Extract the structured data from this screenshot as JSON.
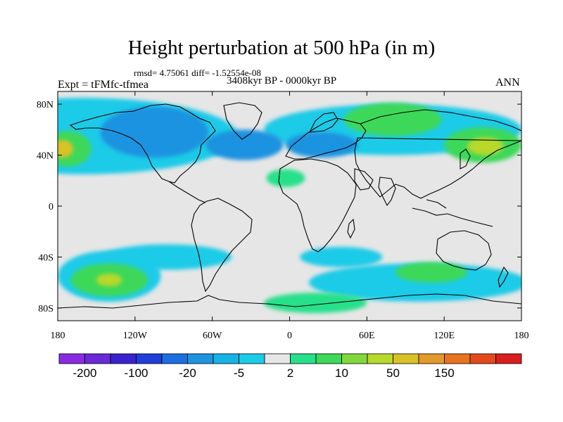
{
  "header": {
    "title": "Height perturbation at 500 hPa (in m)",
    "stats": "rmsd= 4.75061 diff= -1.52554e-08",
    "period": "3408kyr BP - 0000kyr BP",
    "experiment": "Expt = tFMfc-tfmea",
    "season": "ANN"
  },
  "axes": {
    "y_ticks": [
      {
        "label": "80N",
        "lat": 80
      },
      {
        "label": "40N",
        "lat": 40
      },
      {
        "label": "0",
        "lat": 0
      },
      {
        "label": "40S",
        "lat": -40
      },
      {
        "label": "80S",
        "lat": -80
      }
    ],
    "x_ticks": [
      {
        "label": "180",
        "lon": -180
      },
      {
        "label": "120W",
        "lon": -120
      },
      {
        "label": "60W",
        "lon": -60
      },
      {
        "label": "0",
        "lon": 0
      },
      {
        "label": "60E",
        "lon": 60
      },
      {
        "label": "120E",
        "lon": 120
      },
      {
        "label": "180",
        "lon": 180
      }
    ]
  },
  "colorbar": {
    "colors": [
      "#8a2be2",
      "#6a2ad6",
      "#3a22cc",
      "#1f3fd8",
      "#1c6fe0",
      "#1f93e0",
      "#16b3e6",
      "#1ccbe8",
      "#e6e6e6",
      "#27e08a",
      "#3ed85a",
      "#82d83a",
      "#b8d82c",
      "#d8c228",
      "#e49a28",
      "#e6741e",
      "#e24a1c",
      "#d81e1e"
    ],
    "labels": [
      {
        "text": "-200",
        "index": 1
      },
      {
        "text": "-100",
        "index": 3
      },
      {
        "text": "-20",
        "index": 5
      },
      {
        "text": "-5",
        "index": 7
      },
      {
        "text": "2",
        "index": 9
      },
      {
        "text": "10",
        "index": 11
      },
      {
        "text": "50",
        "index": 13
      },
      {
        "text": "150",
        "index": 15
      }
    ]
  },
  "map_fields": {
    "neutral_color": "#e6e6e6",
    "regions": [
      {
        "name": "cyan-northern-band",
        "color": "#1ccbe8",
        "lon": -160,
        "lat": 55,
        "rlon": 120,
        "rlat": 30
      },
      {
        "name": "cyan-asia-band",
        "color": "#1ccbe8",
        "lon": 80,
        "lat": 60,
        "rlon": 100,
        "rlat": 20
      },
      {
        "name": "blue-north-america",
        "color": "#1f93e0",
        "lon": -105,
        "lat": 58,
        "rlon": 42,
        "rlat": 20
      },
      {
        "name": "blue-atlantic",
        "color": "#1f93e0",
        "lon": -35,
        "lat": 48,
        "rlon": 30,
        "rlat": 12
      },
      {
        "name": "blue-europe",
        "color": "#1f93e0",
        "lon": 25,
        "lat": 48,
        "rlon": 28,
        "rlat": 10
      },
      {
        "name": "green-north-pacific",
        "color": "#3ed85a",
        "lon": -172,
        "lat": 45,
        "rlon": 18,
        "rlat": 14
      },
      {
        "name": "orange-north-pacific",
        "color": "#d8c228",
        "lon": -176,
        "lat": 45,
        "rlon": 8,
        "rlat": 7
      },
      {
        "name": "green-siberia",
        "color": "#3ed85a",
        "lon": 80,
        "lat": 68,
        "rlon": 38,
        "rlat": 13
      },
      {
        "name": "green-east-asia",
        "color": "#3ed85a",
        "lon": 150,
        "lat": 48,
        "rlon": 30,
        "rlat": 14
      },
      {
        "name": "yellow-east-asia",
        "color": "#b8d82c",
        "lon": 152,
        "lat": 47,
        "rlon": 14,
        "rlat": 7
      },
      {
        "name": "green-sahara",
        "color": "#27e08a",
        "lon": -3,
        "lat": 22,
        "rlon": 15,
        "rlat": 7
      },
      {
        "name": "cyan-south-america",
        "color": "#1ccbe8",
        "lon": -95,
        "lat": -40,
        "rlon": 50,
        "rlat": 10
      },
      {
        "name": "cyan-south-indian",
        "color": "#1ccbe8",
        "lon": 40,
        "lat": -40,
        "rlon": 32,
        "rlat": 8
      },
      {
        "name": "cyan-south-pacific-w",
        "color": "#1ccbe8",
        "lon": -140,
        "lat": -55,
        "rlon": 40,
        "rlat": 20
      },
      {
        "name": "green-south-pacific",
        "color": "#3ed85a",
        "lon": -140,
        "lat": -58,
        "rlon": 30,
        "rlat": 13
      },
      {
        "name": "yellow-south-pacific",
        "color": "#b8d82c",
        "lon": -140,
        "lat": -58,
        "rlon": 10,
        "rlat": 5
      },
      {
        "name": "cyan-southern-ocean",
        "color": "#1ccbe8",
        "lon": 100,
        "lat": -60,
        "rlon": 85,
        "rlat": 15
      },
      {
        "name": "green-australia-south",
        "color": "#3ed85a",
        "lon": 110,
        "lat": -52,
        "rlon": 28,
        "rlat": 8
      },
      {
        "name": "green-antarctic-band",
        "color": "#27e08a",
        "lon": 20,
        "lat": -76,
        "rlon": 40,
        "rlat": 8
      }
    ]
  }
}
